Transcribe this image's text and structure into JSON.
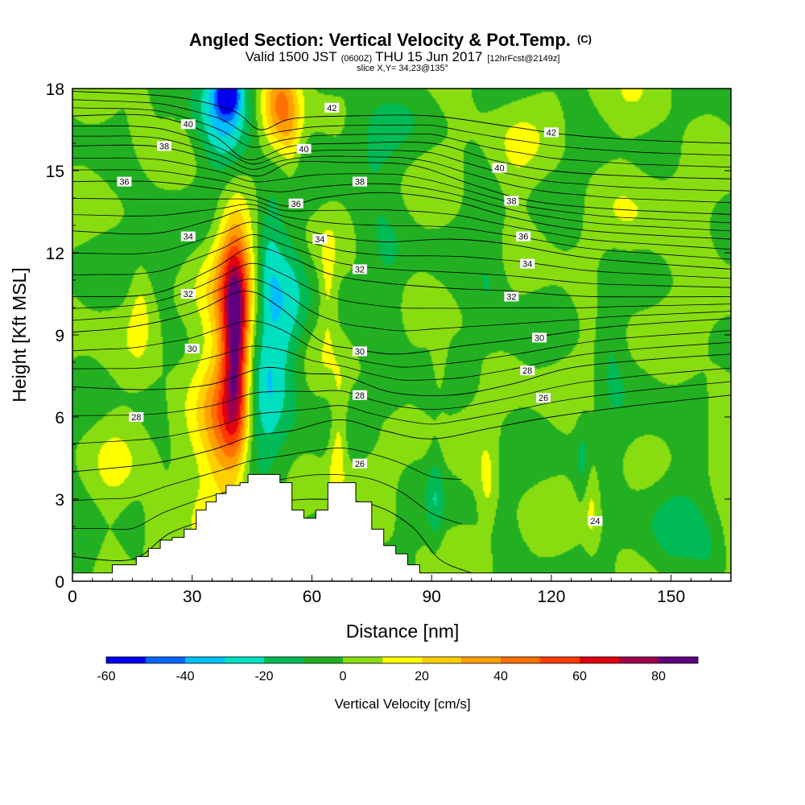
{
  "title": {
    "main": "Angled Section: Vertical Velocity & Pot.Temp.",
    "main_unit": "(C)",
    "valid_prefix": "Valid 1500 JST",
    "valid_utc": "(0600Z)",
    "valid_date": "THU 15 Jun 2017",
    "forecast": "[12hrFcst@2149z]",
    "slice": "slice X,Y= 34,23@135°"
  },
  "chart_data": {
    "type": "heatmap",
    "xlabel": "Distance [nm]",
    "ylabel": "Height [Kft MSL]",
    "xlim": [
      0,
      165
    ],
    "ylim": [
      0,
      18
    ],
    "xticks": [
      "0",
      "30",
      "60",
      "90",
      "120",
      "150"
    ],
    "yticks": [
      "0",
      "3",
      "6",
      "9",
      "12",
      "15",
      "18"
    ],
    "xtick_values": [
      0,
      30,
      60,
      90,
      120,
      150
    ],
    "ytick_values": [
      0,
      3,
      6,
      9,
      12,
      15,
      18
    ],
    "fill_variable": "Vertical Velocity [cm/s]",
    "contour_variable": "Pot.Temp. (C)",
    "colorbar": {
      "label": "Vertical Velocity [cm/s]",
      "levels": [
        -60,
        -50,
        -40,
        -30,
        -20,
        -10,
        0,
        10,
        20,
        30,
        40,
        50,
        60,
        70,
        80,
        90
      ],
      "colors": [
        "#0000ee",
        "#0066ff",
        "#00c0ff",
        "#00e0c0",
        "#00bb55",
        "#22b022",
        "#88dd11",
        "#ffff00",
        "#ffd000",
        "#ffa000",
        "#ff7000",
        "#ff3a00",
        "#e00010",
        "#a0004a",
        "#600080"
      ],
      "tick_labels": [
        "-60",
        "-40",
        "-20",
        "0",
        "20",
        "40",
        "60",
        "80"
      ],
      "tick_values": [
        -60,
        -40,
        -20,
        0,
        20,
        40,
        60,
        80
      ]
    },
    "background_level": 0,
    "velocity_features": [
      {
        "x": 41,
        "y": 8.5,
        "sx": 2.2,
        "sy": 2.6,
        "w": 62
      },
      {
        "x": 40,
        "y": 11.0,
        "sx": 3.5,
        "sy": 2.0,
        "w": 32
      },
      {
        "x": 38,
        "y": 5.5,
        "sx": 3.5,
        "sy": 2.2,
        "w": 28
      },
      {
        "x": 34,
        "y": 7.5,
        "sx": 6.0,
        "sy": 4.0,
        "w": 12
      },
      {
        "x": 52,
        "y": 17.4,
        "sx": 3.0,
        "sy": 1.2,
        "w": 35
      },
      {
        "x": 55,
        "y": 15.8,
        "sx": 2.0,
        "sy": 1.3,
        "w": 14
      },
      {
        "x": 38,
        "y": 16.8,
        "sx": 5.0,
        "sy": 1.6,
        "w": -32
      },
      {
        "x": 39,
        "y": 17.8,
        "sx": 2.0,
        "sy": 0.5,
        "w": -45
      },
      {
        "x": 53,
        "y": 9.5,
        "sx": 4.0,
        "sy": 3.0,
        "w": -22
      },
      {
        "x": 49,
        "y": 11.5,
        "sx": 2.0,
        "sy": 2.0,
        "w": -15
      },
      {
        "x": 48,
        "y": 6.5,
        "sx": 3.0,
        "sy": 1.5,
        "w": -20
      },
      {
        "x": 64,
        "y": 10.5,
        "sx": 1.5,
        "sy": 1.3,
        "w": 14
      },
      {
        "x": 67,
        "y": 5.8,
        "sx": 1.5,
        "sy": 1.3,
        "w": 15
      },
      {
        "x": 66,
        "y": 4.3,
        "sx": 1.5,
        "sy": 1.0,
        "w": 11
      },
      {
        "x": 17,
        "y": 10.0,
        "sx": 2.0,
        "sy": 1.2,
        "w": 13
      },
      {
        "x": 20,
        "y": 1.9,
        "sx": 2.0,
        "sy": 1.0,
        "w": 12
      },
      {
        "x": 17,
        "y": 17.0,
        "sx": 2.0,
        "sy": 1.0,
        "w": 12
      },
      {
        "x": 92,
        "y": 8.0,
        "sx": 1.5,
        "sy": 1.0,
        "w": 14
      },
      {
        "x": 104,
        "y": 3.5,
        "sx": 1.5,
        "sy": 1.0,
        "w": 13
      },
      {
        "x": 130,
        "y": 2.8,
        "sx": 1.3,
        "sy": 1.3,
        "w": 13
      },
      {
        "x": 128,
        "y": 4.5,
        "sx": 1.5,
        "sy": 1.3,
        "w": -11
      },
      {
        "x": 91,
        "y": 3.0,
        "sx": 1.3,
        "sy": 1.5,
        "w": -12
      },
      {
        "x": 105,
        "y": 11.0,
        "sx": 3.5,
        "sy": 1.6,
        "w": -12
      },
      {
        "x": 135,
        "y": 9.0,
        "sx": 2.5,
        "sy": 2.0,
        "w": -12
      },
      {
        "x": 80,
        "y": 9.0,
        "sx": 3.0,
        "sy": 2.0,
        "w": -11
      },
      {
        "x": 75,
        "y": 15.5,
        "sx": 5.0,
        "sy": 2.0,
        "w": -12
      },
      {
        "x": 110,
        "y": 15.0,
        "sx": 4.0,
        "sy": 1.5,
        "w": 8
      },
      {
        "x": 145,
        "y": 13.5,
        "sx": 8.0,
        "sy": 3.0,
        "w": 5
      },
      {
        "x": 22,
        "y": 12.0,
        "sx": 5.0,
        "sy": 1.5,
        "w": -11
      },
      {
        "x": 10,
        "y": 4.0,
        "sx": 4.0,
        "sy": 3.0,
        "w": 5
      },
      {
        "x": 150,
        "y": 3.0,
        "sx": 6.0,
        "sy": 1.8,
        "w": -10
      },
      {
        "x": 162,
        "y": 6.0,
        "sx": 3.0,
        "sy": 3.0,
        "w": 6
      },
      {
        "x": 3,
        "y": 1.0,
        "sx": 3.0,
        "sy": 1.0,
        "w": -11
      },
      {
        "x": 160,
        "y": 1.0,
        "sx": 3.0,
        "sy": 1.0,
        "w": -10
      }
    ],
    "terrain": {
      "x": [
        0,
        10,
        10,
        16,
        16,
        19,
        19,
        22,
        22,
        25,
        25,
        28,
        28,
        31,
        31,
        33.5,
        33.5,
        36,
        36,
        38.5,
        38.5,
        42,
        42,
        44,
        44,
        52,
        52,
        55,
        55,
        58,
        58,
        61,
        61,
        64,
        64,
        67,
        67,
        71,
        71,
        75,
        75,
        78,
        78,
        81,
        81,
        84,
        84,
        87,
        87,
        91,
        91,
        165
      ],
      "y": [
        0.3,
        0.3,
        0.6,
        0.6,
        0.9,
        0.9,
        1.2,
        1.2,
        1.5,
        1.5,
        1.6,
        1.6,
        1.9,
        1.9,
        2.6,
        2.6,
        2.9,
        2.9,
        3.2,
        3.2,
        3.5,
        3.5,
        3.6,
        3.6,
        3.9,
        3.9,
        3.6,
        3.6,
        2.6,
        2.6,
        2.3,
        2.3,
        2.6,
        2.6,
        3.6,
        3.6,
        3.6,
        3.6,
        2.9,
        2.9,
        1.9,
        1.9,
        1.3,
        1.3,
        1.0,
        1.0,
        0.6,
        0.6,
        0.3,
        0.3,
        0.3,
        0.3
      ]
    },
    "isentropes": [
      {
        "level": 24,
        "pts": [
          [
            0,
            0.9
          ],
          [
            15,
            0.8
          ],
          [
            25,
            1.8
          ],
          [
            40,
            2.5
          ],
          [
            48,
            2.8
          ],
          [
            60,
            3.0
          ],
          [
            75,
            2.8
          ],
          [
            85,
            2.0
          ],
          [
            92,
            0.8
          ],
          [
            100,
            0.3
          ]
        ]
      },
      {
        "level": 26,
        "pts": [
          [
            0,
            4.0
          ],
          [
            20,
            4.3
          ],
          [
            35,
            4.8
          ],
          [
            45,
            5.3
          ],
          [
            55,
            5.5
          ],
          [
            67,
            5.9
          ],
          [
            78,
            5.5
          ],
          [
            90,
            5.2
          ],
          [
            105,
            5.6
          ],
          [
            120,
            6.0
          ],
          [
            140,
            6.4
          ],
          [
            165,
            6.8
          ]
        ]
      },
      {
        "level": 28,
        "pts": [
          [
            0,
            7.1
          ],
          [
            20,
            7.0
          ],
          [
            35,
            7.2
          ],
          [
            48,
            7.8
          ],
          [
            58,
            7.6
          ],
          [
            68,
            7.5
          ],
          [
            80,
            6.9
          ],
          [
            95,
            6.8
          ],
          [
            110,
            7.2
          ],
          [
            125,
            7.8
          ],
          [
            145,
            8.1
          ],
          [
            165,
            8.3
          ]
        ]
      },
      {
        "level": 30,
        "pts": [
          [
            0,
            9.1
          ],
          [
            15,
            9.3
          ],
          [
            30,
            9.8
          ],
          [
            43,
            10.6
          ],
          [
            52,
            10.0
          ],
          [
            62,
            8.8
          ],
          [
            70,
            8.5
          ],
          [
            82,
            8.3
          ],
          [
            98,
            8.6
          ],
          [
            115,
            8.9
          ],
          [
            135,
            9.3
          ],
          [
            165,
            9.6
          ]
        ]
      },
      {
        "level": 32,
        "pts": [
          [
            0,
            10.4
          ],
          [
            20,
            10.5
          ],
          [
            35,
            11.4
          ],
          [
            45,
            12.2
          ],
          [
            55,
            11.8
          ],
          [
            65,
            11.2
          ],
          [
            78,
            10.9
          ],
          [
            95,
            10.7
          ],
          [
            110,
            10.6
          ],
          [
            130,
            10.4
          ],
          [
            165,
            10.4
          ]
        ]
      },
      {
        "level": 34,
        "pts": [
          [
            0,
            12.8
          ],
          [
            20,
            12.7
          ],
          [
            35,
            13.2
          ],
          [
            45,
            13.6
          ],
          [
            55,
            13.0
          ],
          [
            65,
            12.6
          ],
          [
            78,
            12.4
          ],
          [
            95,
            12.5
          ],
          [
            110,
            12.3
          ],
          [
            130,
            11.8
          ],
          [
            165,
            11.4
          ]
        ]
      },
      {
        "level": 36,
        "pts": [
          [
            0,
            14.6
          ],
          [
            20,
            14.6
          ],
          [
            38,
            14.3
          ],
          [
            45,
            14.1
          ],
          [
            54,
            13.7
          ],
          [
            62,
            14.0
          ],
          [
            78,
            14.2
          ],
          [
            95,
            13.9
          ],
          [
            110,
            13.3
          ],
          [
            130,
            12.8
          ],
          [
            165,
            12.5
          ]
        ]
      },
      {
        "level": 38,
        "pts": [
          [
            0,
            15.9
          ],
          [
            20,
            15.9
          ],
          [
            35,
            15.4
          ],
          [
            46,
            14.8
          ],
          [
            55,
            15.3
          ],
          [
            68,
            15.3
          ],
          [
            85,
            15.2
          ],
          [
            100,
            14.5
          ],
          [
            115,
            13.9
          ],
          [
            135,
            13.6
          ],
          [
            165,
            13.4
          ]
        ]
      },
      {
        "level": 40,
        "pts": [
          [
            0,
            17.0
          ],
          [
            20,
            17.0
          ],
          [
            35,
            16.3
          ],
          [
            44,
            15.4
          ],
          [
            55,
            15.9
          ],
          [
            70,
            16.0
          ],
          [
            90,
            16.0
          ],
          [
            105,
            15.4
          ],
          [
            120,
            15.0
          ],
          [
            140,
            14.8
          ],
          [
            165,
            14.7
          ]
        ]
      },
      {
        "level": 42,
        "pts": [
          [
            0,
            17.9
          ],
          [
            25,
            17.7
          ],
          [
            40,
            17.2
          ],
          [
            47,
            16.5
          ],
          [
            55,
            16.9
          ],
          [
            70,
            17.0
          ],
          [
            90,
            17.0
          ],
          [
            110,
            16.6
          ],
          [
            125,
            16.3
          ],
          [
            145,
            16.1
          ],
          [
            165,
            16.0
          ]
        ]
      }
    ],
    "contour_labels": [
      {
        "text": "40",
        "x": 29,
        "y": 16.7
      },
      {
        "text": "38",
        "x": 23,
        "y": 15.9
      },
      {
        "text": "36",
        "x": 13,
        "y": 14.6
      },
      {
        "text": "34",
        "x": 29,
        "y": 12.6
      },
      {
        "text": "32",
        "x": 29,
        "y": 10.5
      },
      {
        "text": "30",
        "x": 30,
        "y": 8.5
      },
      {
        "text": "28",
        "x": 16,
        "y": 6.0
      },
      {
        "text": "42",
        "x": 65,
        "y": 17.3
      },
      {
        "text": "40",
        "x": 58,
        "y": 15.8
      },
      {
        "text": "38",
        "x": 72,
        "y": 14.6
      },
      {
        "text": "36",
        "x": 56,
        "y": 13.8
      },
      {
        "text": "34",
        "x": 62,
        "y": 12.5
      },
      {
        "text": "32",
        "x": 72,
        "y": 11.4
      },
      {
        "text": "30",
        "x": 72,
        "y": 8.4
      },
      {
        "text": "28",
        "x": 72,
        "y": 6.8
      },
      {
        "text": "26",
        "x": 72,
        "y": 4.3
      },
      {
        "text": "42",
        "x": 120,
        "y": 16.4
      },
      {
        "text": "40",
        "x": 107,
        "y": 15.1
      },
      {
        "text": "38",
        "x": 110,
        "y": 13.9
      },
      {
        "text": "36",
        "x": 113,
        "y": 12.6
      },
      {
        "text": "34",
        "x": 114,
        "y": 11.6
      },
      {
        "text": "32",
        "x": 110,
        "y": 10.4
      },
      {
        "text": "30",
        "x": 117,
        "y": 8.9
      },
      {
        "text": "28",
        "x": 114,
        "y": 7.7
      },
      {
        "text": "26",
        "x": 118,
        "y": 6.7
      },
      {
        "text": "24",
        "x": 131,
        "y": 2.2
      }
    ]
  }
}
